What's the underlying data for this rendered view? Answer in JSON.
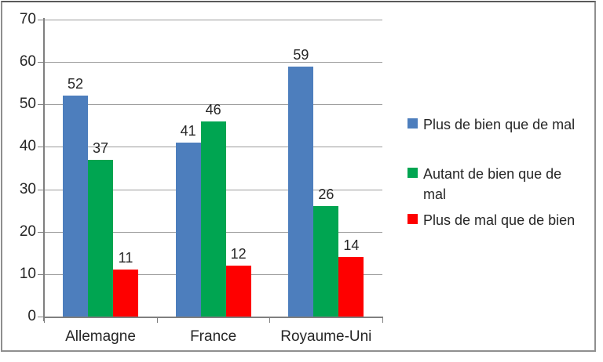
{
  "chart_data": {
    "type": "bar",
    "title": "",
    "xlabel": "",
    "ylabel": "",
    "categories": [
      "Allemagne",
      "France",
      "Royaume-Uni"
    ],
    "series": [
      {
        "name": "Plus de bien que de mal",
        "legend_lines": [
          "Plus de bien que de mal"
        ],
        "color": "#4d7ebd",
        "values": [
          52,
          41,
          59
        ]
      },
      {
        "name": "Autant de bien que de mal",
        "legend_lines": [
          "Autant de bien que de",
          "mal"
        ],
        "color": "#00a551",
        "values": [
          37,
          46,
          26
        ]
      },
      {
        "name": "Plus de mal que de bien",
        "legend_lines": [
          "Plus de mal que de bien"
        ],
        "color": "#fe0000",
        "values": [
          11,
          12,
          14
        ]
      }
    ],
    "y_axis": {
      "min": 0,
      "max": 70,
      "step": 10,
      "tick_labels": [
        "0",
        "10",
        "20",
        "30",
        "40",
        "50",
        "60",
        "70"
      ]
    },
    "grid": true,
    "legend_position": "right",
    "data_labels": true,
    "colors": {
      "grid": "#9c9c9c",
      "axis": "#7f7f7f",
      "text": "#262626",
      "frame_border": "#8f8f8f"
    }
  }
}
